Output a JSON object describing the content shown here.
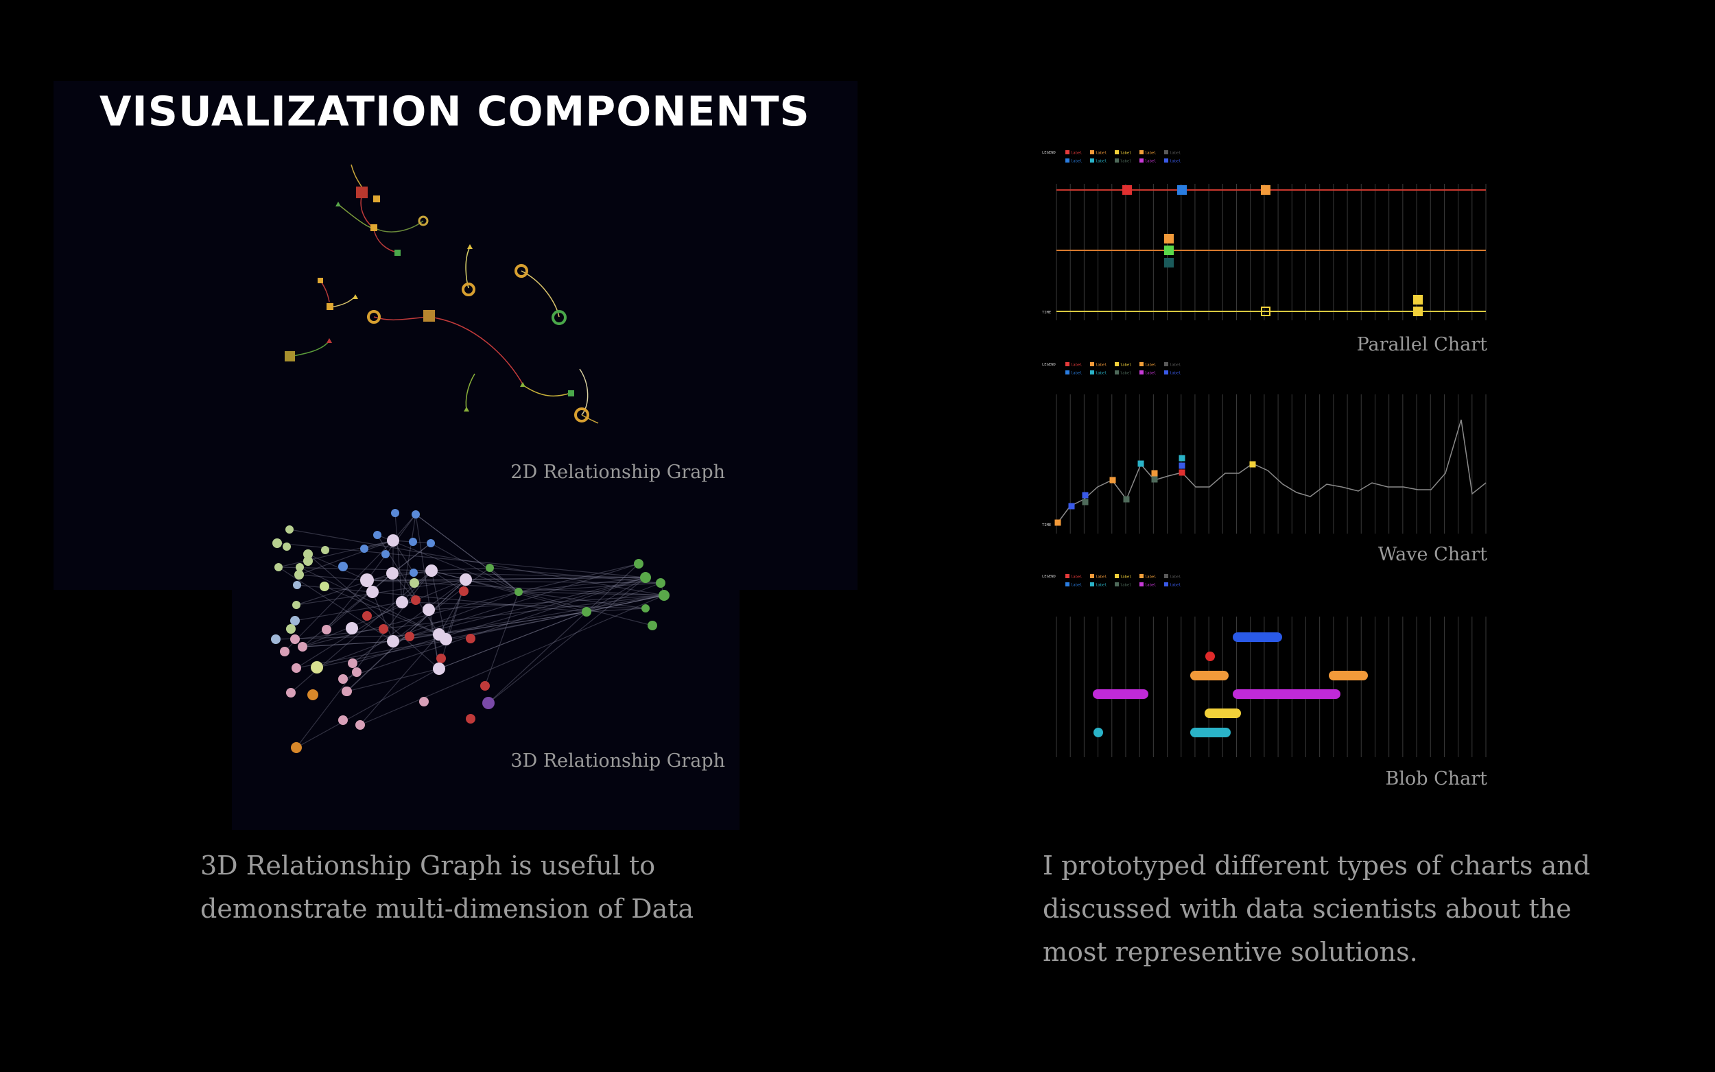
{
  "page": {
    "title": "VISUALIZATION COMPONENTS",
    "colors": {
      "background": "#000000",
      "panel": "#03030f"
    }
  },
  "graphs": {
    "graph2d_caption": "2D Relationship Graph",
    "graph3d_caption": "3D Relationship Graph"
  },
  "charts": {
    "legend_title": "LEGEND",
    "legend_item": "label",
    "time_label": "TIME",
    "parallel_caption": "Parallel Chart",
    "wave_caption": "Wave Chart",
    "blob_caption": "Blob Chart",
    "legend_colors": [
      "#e63b3b",
      "#f29a3a",
      "#f2d13a",
      "#f2a03a",
      "#5a5a5a",
      "#2a7de1",
      "#2ab3c8",
      "#4e6a5a",
      "#c83ad8",
      "#3a5ae8"
    ]
  },
  "descriptions": {
    "left": [
      "3D Relationship Graph is useful to",
      "demonstrate multi-dimension of Data"
    ],
    "right": [
      "I prototyped different types of charts and",
      "discussed with data scientists about the",
      "most representive solutions."
    ]
  }
}
